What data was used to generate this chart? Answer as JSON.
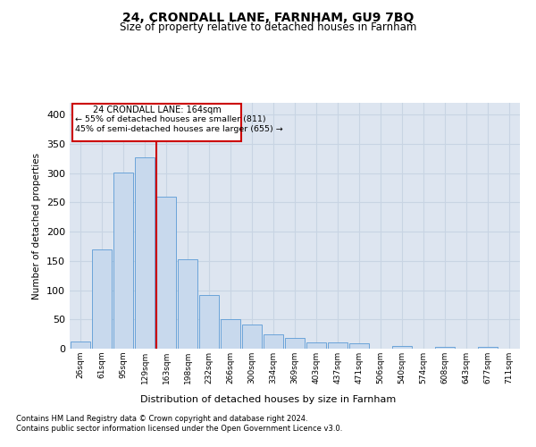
{
  "title": "24, CRONDALL LANE, FARNHAM, GU9 7BQ",
  "subtitle": "Size of property relative to detached houses in Farnham",
  "xlabel": "Distribution of detached houses by size in Farnham",
  "ylabel": "Number of detached properties",
  "bar_color": "#c8d9ed",
  "bar_edge_color": "#5b9bd5",
  "grid_color": "#c8d4e3",
  "background_color": "#dde5f0",
  "vline_color": "#cc0000",
  "annotation_line1": "24 CRONDALL LANE: 164sqm",
  "annotation_line2": "← 55% of detached houses are smaller (811)",
  "annotation_line3": "45% of semi-detached houses are larger (655) →",
  "annotation_box_color": "#ffffff",
  "annotation_box_edge": "#cc0000",
  "categories": [
    "26sqm",
    "61sqm",
    "95sqm",
    "129sqm",
    "163sqm",
    "198sqm",
    "232sqm",
    "266sqm",
    "300sqm",
    "334sqm",
    "369sqm",
    "403sqm",
    "437sqm",
    "471sqm",
    "506sqm",
    "540sqm",
    "574sqm",
    "608sqm",
    "643sqm",
    "677sqm",
    "711sqm"
  ],
  "values": [
    12,
    170,
    301,
    327,
    259,
    152,
    92,
    50,
    41,
    25,
    19,
    11,
    10,
    9,
    0,
    4,
    0,
    3,
    0,
    3,
    0
  ],
  "ylim": [
    0,
    420
  ],
  "yticks": [
    0,
    50,
    100,
    150,
    200,
    250,
    300,
    350,
    400
  ],
  "footer_line1": "Contains HM Land Registry data © Crown copyright and database right 2024.",
  "footer_line2": "Contains public sector information licensed under the Open Government Licence v3.0."
}
